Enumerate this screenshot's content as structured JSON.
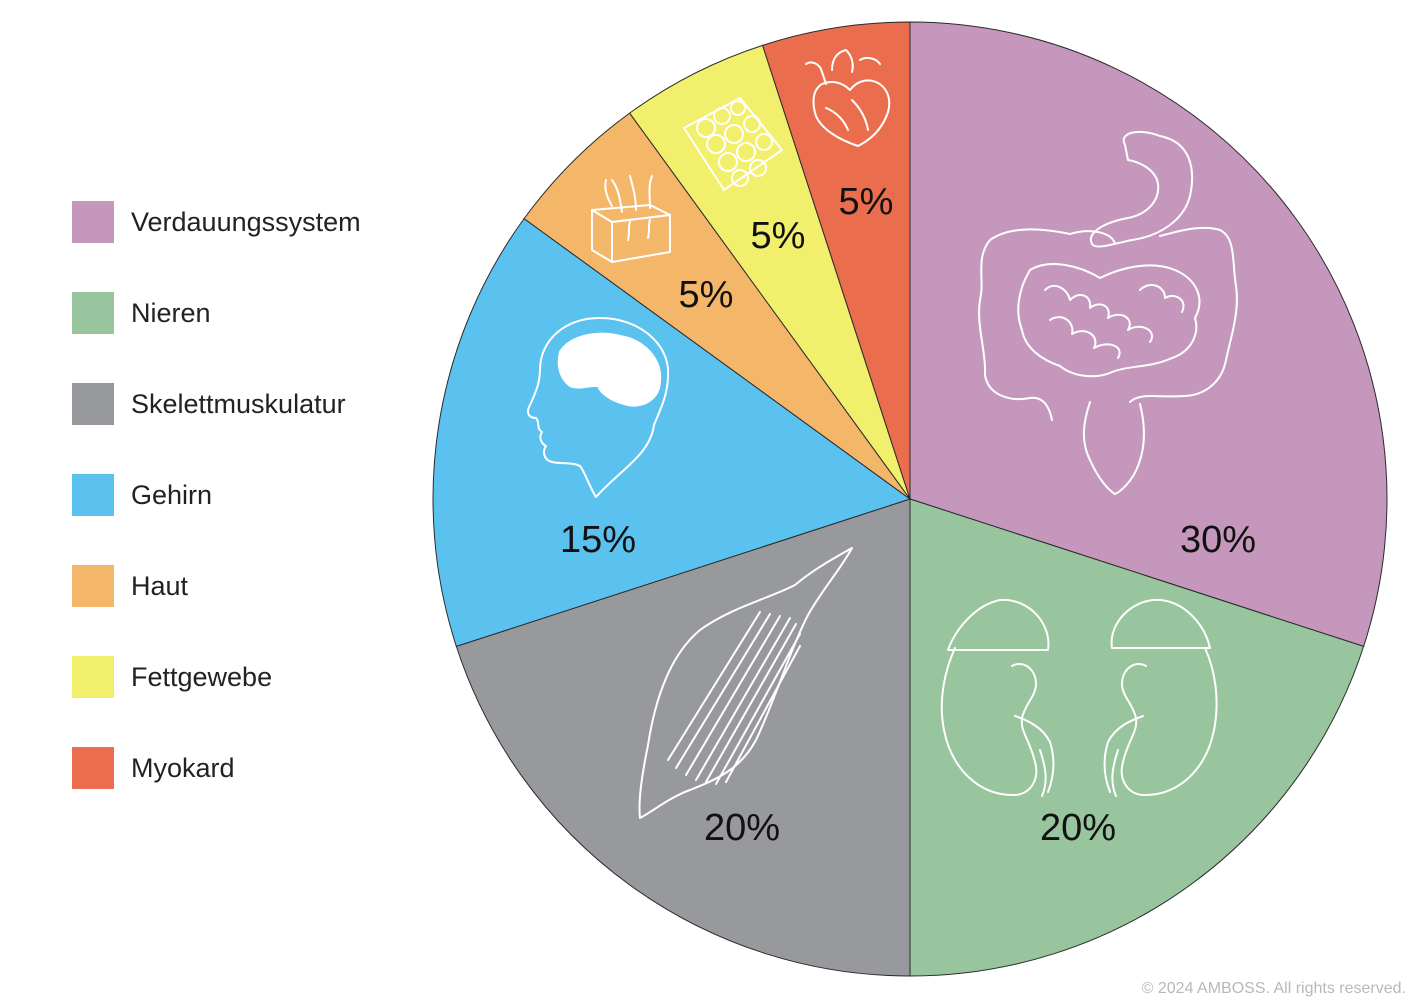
{
  "chart_data": {
    "type": "pie",
    "title": "",
    "unit": "%",
    "start": "12 o'clock",
    "direction": "clockwise",
    "slices": [
      {
        "name": "Verdauungssystem",
        "value": 30,
        "label": "30%",
        "color": "#c697bc",
        "icon": "digestive-system-icon"
      },
      {
        "name": "Nieren",
        "value": 20,
        "label": "20%",
        "color": "#98c49e",
        "icon": "kidneys-icon"
      },
      {
        "name": "Skelettmuskulatur",
        "value": 20,
        "label": "20%",
        "color": "#97999c",
        "icon": "muscle-icon"
      },
      {
        "name": "Gehirn",
        "value": 15,
        "label": "15%",
        "color": "#5bc2f0",
        "icon": "brain-head-icon"
      },
      {
        "name": "Haut",
        "value": 5,
        "label": "5%",
        "color": "#f4b76a",
        "icon": "skin-icon"
      },
      {
        "name": "Fettgewebe",
        "value": 5,
        "label": "5%",
        "color": "#f2ef6c",
        "icon": "fat-tissue-icon"
      },
      {
        "name": "Myokard",
        "value": 5,
        "label": "5%",
        "color": "#ea6e4e",
        "icon": "heart-icon"
      }
    ],
    "legend": {
      "position": "left",
      "items": [
        "Verdauungssystem",
        "Nieren",
        "Skelettmuskulatur",
        "Gehirn",
        "Haut",
        "Fettgewebe",
        "Myokard"
      ]
    }
  },
  "copyright": "© 2024 AMBOSS. All rights reserved."
}
